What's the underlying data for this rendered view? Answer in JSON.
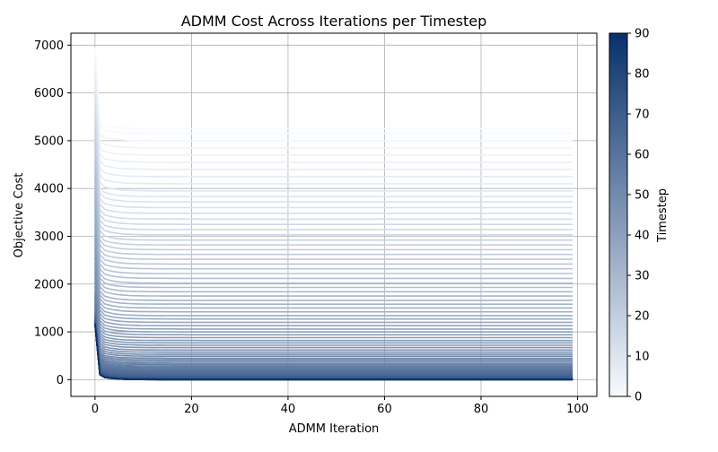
{
  "chart_data": {
    "type": "line",
    "title": "ADMM Cost Across Iterations per Timestep",
    "xlabel": "ADMM Iteration",
    "ylabel": "Objective Cost",
    "xlim": [
      -5,
      104
    ],
    "ylim": [
      -350,
      7250
    ],
    "xticks": [
      0,
      20,
      40,
      60,
      80,
      100
    ],
    "yticks": [
      0,
      1000,
      2000,
      3000,
      4000,
      5000,
      6000,
      7000
    ],
    "grid": true,
    "iterations": 100,
    "colormap": {
      "name": "Blues",
      "label": "Timestep",
      "min": 0,
      "max": 90,
      "ticks": [
        0,
        10,
        20,
        30,
        40,
        50,
        60,
        70,
        80,
        90
      ],
      "color_low": "#f7fbff",
      "color_high": "#08306b"
    },
    "series_summary": {
      "count": 91,
      "timesteps": [
        0,
        1,
        2,
        3,
        4,
        5,
        6,
        7,
        8,
        9,
        10,
        11,
        12,
        13,
        14,
        15,
        16,
        17,
        18,
        19,
        20,
        21,
        22,
        23,
        24,
        25,
        26,
        27,
        28,
        29,
        30,
        31,
        32,
        33,
        34,
        35,
        36,
        37,
        38,
        39,
        40,
        41,
        42,
        43,
        44,
        45,
        46,
        47,
        48,
        49,
        50,
        51,
        52,
        53,
        54,
        55,
        56,
        57,
        58,
        59,
        60,
        61,
        62,
        63,
        64,
        65,
        66,
        67,
        68,
        69,
        70,
        71,
        72,
        73,
        74,
        75,
        76,
        77,
        78,
        79,
        80,
        81,
        82,
        83,
        84,
        85,
        86,
        87,
        88,
        89,
        90
      ],
      "initial_cost": [
        6950,
        6850,
        6750,
        6650,
        6550,
        6450,
        6350,
        6250,
        6150,
        6050,
        5950,
        5850,
        5750,
        5650,
        5550,
        5450,
        5350,
        5250,
        5150,
        5050,
        4950,
        4850,
        4750,
        4650,
        4550,
        4450,
        4350,
        4250,
        4150,
        4050,
        3950,
        3850,
        3750,
        3650,
        3550,
        3450,
        3350,
        3250,
        3150,
        3050,
        2950,
        2850,
        2750,
        2650,
        2550,
        2450,
        2350,
        2250,
        2150,
        2050,
        1950,
        1850,
        1800,
        1750,
        1700,
        1650,
        1600,
        1550,
        1500,
        1450,
        1400,
        1380,
        1360,
        1340,
        1320,
        1300,
        1280,
        1260,
        1250,
        1240,
        1230,
        1220,
        1210,
        1200,
        1195,
        1190,
        1185,
        1180,
        1175,
        1170,
        1165,
        1160,
        1160,
        1160,
        1160,
        1160,
        1160,
        1160,
        1160,
        1160,
        1160
      ],
      "final_cost": [
        5250,
        5150,
        5000,
        4850,
        4700,
        4550,
        4400,
        4250,
        4100,
        3950,
        3830,
        3720,
        3600,
        3480,
        3360,
        3250,
        3140,
        3030,
        2920,
        2820,
        2720,
        2620,
        2520,
        2420,
        2320,
        2220,
        2120,
        2020,
        1930,
        1840,
        1750,
        1660,
        1580,
        1500,
        1420,
        1340,
        1270,
        1200,
        1130,
        1060,
        1000,
        940,
        880,
        820,
        770,
        720,
        670,
        620,
        575,
        530,
        490,
        450,
        415,
        380,
        345,
        315,
        285,
        258,
        232,
        208,
        186,
        165,
        146,
        128,
        112,
        97,
        84,
        72,
        61,
        52,
        44,
        37,
        31,
        26,
        22,
        18,
        15,
        12,
        10,
        8,
        6,
        5,
        4,
        3,
        2,
        2,
        1,
        1,
        1,
        0,
        0
      ]
    }
  }
}
